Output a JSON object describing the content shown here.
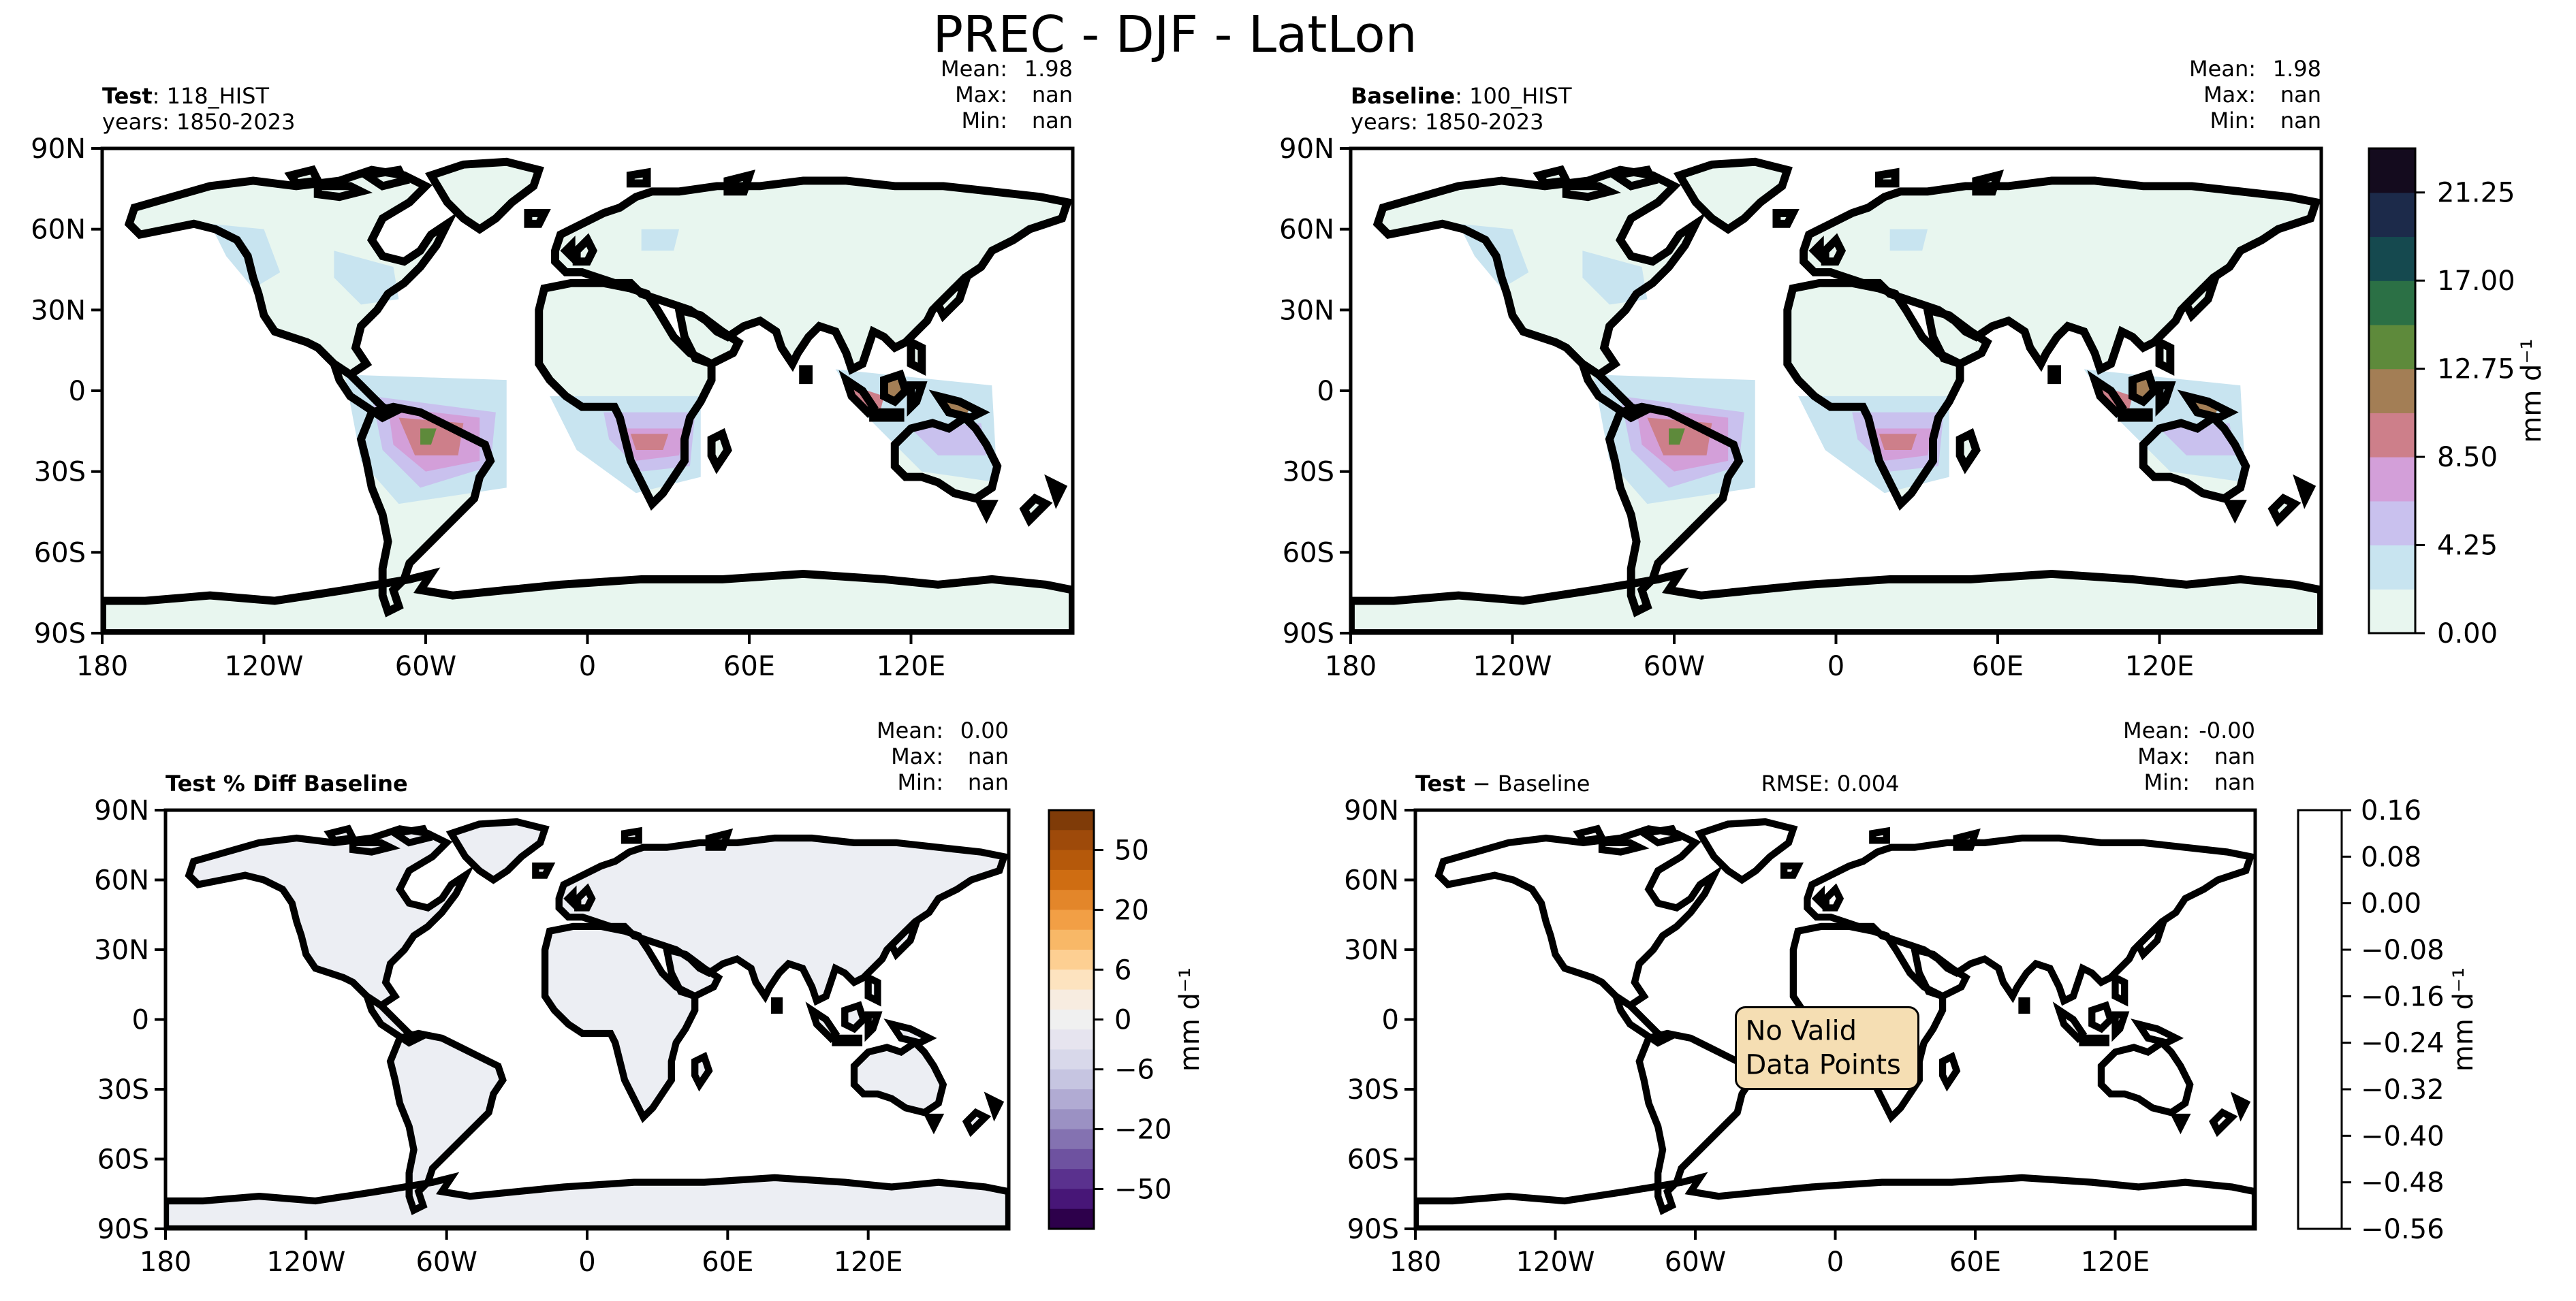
{
  "suptitle": "PREC - DJF - LatLon",
  "lat_ticks": [
    "90N",
    "60N",
    "30N",
    "0",
    "30S",
    "60S",
    "90S"
  ],
  "lon_ticks": [
    "180",
    "120W",
    "60W",
    "0",
    "60E",
    "120E"
  ],
  "colors": {
    "land_test": "#e8f6ef",
    "land_pct": "#eceef3",
    "land_diff": "#ffffff",
    "coast": "#000000",
    "box_fill": "#f5deb3"
  },
  "panels": [
    {
      "id": "test",
      "title_bold": "Test",
      "title_rest": ": 118_HIST",
      "years": "years: 1850-2023",
      "stats": [
        [
          "Mean:",
          "1.98"
        ],
        [
          "Max:",
          "nan"
        ],
        [
          "Min:",
          "nan"
        ]
      ]
    },
    {
      "id": "baseline",
      "title_bold": "Baseline",
      "title_rest": ": 100_HIST",
      "years": "years: 1850-2023",
      "stats": [
        [
          "Mean:",
          "1.98"
        ],
        [
          "Max:",
          "nan"
        ],
        [
          "Min:",
          "nan"
        ]
      ]
    },
    {
      "id": "pctdiff",
      "title_bold": "Test % Diff Baseline",
      "title_rest": "",
      "years": "",
      "stats": [
        [
          "Mean:",
          "0.00"
        ],
        [
          "Max:",
          "nan"
        ],
        [
          "Min:",
          "nan"
        ]
      ]
    },
    {
      "id": "diff",
      "title_bold": "Test",
      "title_rest": " − Baseline",
      "rmse": "RMSE: 0.004",
      "years": "",
      "stats": [
        [
          "Mean:",
          "-0.00"
        ],
        [
          "Max:",
          "nan"
        ],
        [
          "Min:",
          "nan"
        ]
      ],
      "message": [
        "No Valid",
        "Data Points"
      ]
    }
  ],
  "colorbars": [
    {
      "id": "cbar-main",
      "label": "mm d⁻¹",
      "ticks": [
        "0.00",
        "4.25",
        "8.50",
        "12.75",
        "17.00",
        "21.25"
      ],
      "colors": [
        "#e8f6ef",
        "#c8e4f0",
        "#c9c1ee",
        "#d39fd9",
        "#cd7f8a",
        "#a37e55",
        "#5e8a3b",
        "#2b7045",
        "#15494f",
        "#1c2a4a",
        "#140b1e"
      ]
    },
    {
      "id": "cbar-pct",
      "label": "mm d⁻¹",
      "ticks": [
        "50",
        "20",
        "6",
        "0",
        "−6",
        "−20",
        "−50"
      ],
      "colors": [
        "#7f3b08",
        "#9e4a0a",
        "#b5590b",
        "#cf6d12",
        "#e3862a",
        "#f29f45",
        "#f8b867",
        "#fdcf92",
        "#fde3bf",
        "#f7ece0",
        "#f0f0f0",
        "#e6e4ef",
        "#d8d8ea",
        "#c6c5e1",
        "#b1abd3",
        "#9b91c3",
        "#8472b1",
        "#6e52a0",
        "#5a318e",
        "#471677",
        "#2d004b"
      ]
    },
    {
      "id": "cbar-diff",
      "label": "mm d⁻¹",
      "ticks": [
        "0.16",
        "0.08",
        "0.00",
        "−0.08",
        "−0.16",
        "−0.24",
        "−0.32",
        "−0.40",
        "−0.48",
        "−0.56"
      ],
      "colors": [
        "#ffffff"
      ]
    }
  ],
  "chart_data": [
    {
      "type": "heatmap",
      "title": "Test: 118_HIST",
      "variable": "PREC - DJF - LatLon",
      "units": "mm d⁻¹",
      "years": "1850-2023",
      "mean": 1.98,
      "max": "nan",
      "min": "nan",
      "color_levels": [
        0.0,
        4.25,
        8.5,
        12.75,
        17.0,
        21.25
      ],
      "xlim": [
        -180,
        180
      ],
      "ylim": [
        -90,
        90
      ]
    },
    {
      "type": "heatmap",
      "title": "Baseline: 100_HIST",
      "units": "mm d⁻¹",
      "years": "1850-2023",
      "mean": 1.98,
      "max": "nan",
      "min": "nan",
      "xlim": [
        -180,
        180
      ],
      "ylim": [
        -90,
        90
      ]
    },
    {
      "type": "heatmap",
      "title": "Test % Diff Baseline",
      "units": "mm d⁻¹",
      "mean": 0.0,
      "max": "nan",
      "min": "nan",
      "color_levels": [
        -50,
        -20,
        -6,
        0,
        6,
        20,
        50
      ],
      "xlim": [
        -180,
        180
      ],
      "ylim": [
        -90,
        90
      ]
    },
    {
      "type": "heatmap",
      "title": "Test − Baseline",
      "units": "mm d⁻¹",
      "rmse": 0.004,
      "mean": -0.0,
      "max": "nan",
      "min": "nan",
      "color_levels": [
        -0.56,
        -0.48,
        -0.4,
        -0.32,
        -0.24,
        -0.16,
        -0.08,
        0.0,
        0.08,
        0.16
      ],
      "xlim": [
        -180,
        180
      ],
      "ylim": [
        -90,
        90
      ]
    }
  ]
}
